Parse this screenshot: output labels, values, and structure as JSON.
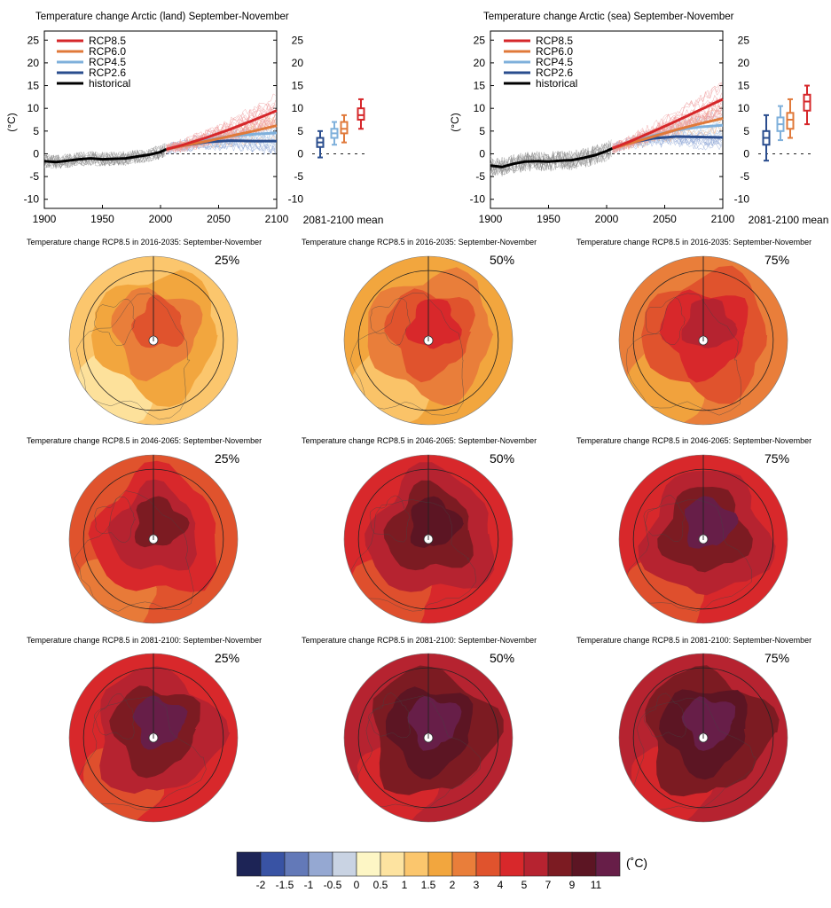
{
  "timeseries_panels": [
    {
      "title": "Temperature change Arctic (land) September-November",
      "ylabel": "(°C)",
      "mean_label": "2081-2100 mean",
      "legend": [
        "RCP8.5",
        "RCP6.0",
        "RCP4.5",
        "RCP2.6",
        "historical"
      ]
    },
    {
      "title": "Temperature change Arctic (sea) September-November",
      "ylabel": "(°C)",
      "mean_label": "2081-2100 mean",
      "legend": [
        "RCP8.5",
        "RCP6.0",
        "RCP4.5",
        "RCP2.6",
        "historical"
      ]
    }
  ],
  "map_rows": [
    {
      "title": "Temperature change RCP8.5 in 2016-2035: September-November"
    },
    {
      "title": "Temperature change RCP8.5 in 2046-2065: September-November"
    },
    {
      "title": "Temperature change RCP8.5 in 2081-2100: September-November"
    }
  ],
  "percentiles": [
    "25%",
    "50%",
    "75%"
  ],
  "colorbar": {
    "unit": "(˚C)",
    "tick_labels": [
      "-2",
      "-1.5",
      "-1",
      "-0.5",
      "0",
      "0.5",
      "1",
      "1.5",
      "2",
      "3",
      "4",
      "5",
      "7",
      "9",
      "11"
    ],
    "colors": [
      "#1d2456",
      "#3953a4",
      "#6379b8",
      "#95a8d2",
      "#c9d3e3",
      "#fdf6c5",
      "#fde3a0",
      "#fbc66d",
      "#f2a63e",
      "#e97e3a",
      "#e0532d",
      "#d8282b",
      "#b62330",
      "#7c1b22",
      "#5c1523",
      "#671e48"
    ]
  },
  "chart_data": [
    {
      "type": "line",
      "title": "Temperature change Arctic (land) September-November",
      "xlabel": "",
      "ylabel": "(°C)",
      "xlim": [
        1900,
        2100
      ],
      "ylim": [
        -12,
        27
      ],
      "x_ticks": [
        1900,
        1950,
        2000,
        2050,
        2100
      ],
      "y_ticks": [
        -10,
        -5,
        0,
        5,
        10,
        15,
        20,
        25
      ],
      "legend_position": "top-left",
      "series": [
        {
          "name": "historical",
          "color": "#000000",
          "x": [
            1900,
            1910,
            1920,
            1930,
            1940,
            1950,
            1960,
            1970,
            1980,
            1990,
            2000,
            2005
          ],
          "y": [
            -1.6,
            -1.8,
            -1.5,
            -1.2,
            -1.0,
            -1.2,
            -1.1,
            -1.0,
            -0.6,
            -0.2,
            0.4,
            1.0
          ]
        },
        {
          "name": "RCP2.6",
          "color": "#2a4d8e",
          "x": [
            2005,
            2020,
            2040,
            2060,
            2080,
            2100
          ],
          "y": [
            1.0,
            1.8,
            2.6,
            2.9,
            2.8,
            2.8
          ]
        },
        {
          "name": "RCP4.5",
          "color": "#7fb0db",
          "x": [
            2005,
            2020,
            2040,
            2060,
            2080,
            2100
          ],
          "y": [
            1.0,
            1.9,
            3.0,
            3.9,
            4.3,
            4.6
          ]
        },
        {
          "name": "RCP6.0",
          "color": "#e0793a",
          "x": [
            2005,
            2020,
            2040,
            2060,
            2080,
            2100
          ],
          "y": [
            1.0,
            1.8,
            2.8,
            3.9,
            5.0,
            6.2
          ]
        },
        {
          "name": "RCP8.5",
          "color": "#d6272a",
          "x": [
            2005,
            2020,
            2040,
            2060,
            2080,
            2100
          ],
          "y": [
            1.0,
            2.0,
            3.6,
            5.4,
            7.4,
            9.5
          ]
        }
      ],
      "box_2081_2100_mean": [
        {
          "name": "RCP2.6",
          "min": -0.8,
          "q1": 1.5,
          "median": 2.5,
          "q3": 3.5,
          "max": 5.0
        },
        {
          "name": "RCP4.5",
          "min": 2.0,
          "q1": 3.5,
          "median": 4.5,
          "q3": 5.5,
          "max": 7.0
        },
        {
          "name": "RCP6.0",
          "min": 2.5,
          "q1": 4.5,
          "median": 5.5,
          "q3": 7.0,
          "max": 8.5
        },
        {
          "name": "RCP8.5",
          "min": 5.5,
          "q1": 7.5,
          "median": 8.5,
          "q3": 10.0,
          "max": 12.0
        }
      ]
    },
    {
      "type": "line",
      "title": "Temperature change Arctic (sea) September-November",
      "xlabel": "",
      "ylabel": "(°C)",
      "xlim": [
        1900,
        2100
      ],
      "ylim": [
        -12,
        27
      ],
      "x_ticks": [
        1900,
        1950,
        2000,
        2050,
        2100
      ],
      "y_ticks": [
        -10,
        -5,
        0,
        5,
        10,
        15,
        20,
        25
      ],
      "legend_position": "top-left",
      "series": [
        {
          "name": "historical",
          "color": "#000000",
          "x": [
            1900,
            1910,
            1920,
            1930,
            1940,
            1950,
            1960,
            1970,
            1980,
            1990,
            2000,
            2005
          ],
          "y": [
            -2.6,
            -2.9,
            -2.2,
            -1.7,
            -1.6,
            -1.7,
            -1.5,
            -1.4,
            -0.9,
            -0.3,
            0.6,
            1.2
          ]
        },
        {
          "name": "RCP2.6",
          "color": "#2a4d8e",
          "x": [
            2005,
            2020,
            2040,
            2060,
            2080,
            2100
          ],
          "y": [
            1.2,
            2.4,
            3.4,
            3.8,
            3.7,
            3.6
          ]
        },
        {
          "name": "RCP4.5",
          "color": "#7fb0db",
          "x": [
            2005,
            2020,
            2040,
            2060,
            2080,
            2100
          ],
          "y": [
            1.2,
            2.5,
            4.0,
            5.2,
            5.9,
            6.3
          ]
        },
        {
          "name": "RCP6.0",
          "color": "#e0793a",
          "x": [
            2005,
            2020,
            2040,
            2060,
            2080,
            2100
          ],
          "y": [
            1.2,
            2.3,
            3.8,
            5.3,
            6.6,
            7.8
          ]
        },
        {
          "name": "RCP8.5",
          "color": "#d6272a",
          "x": [
            2005,
            2020,
            2040,
            2060,
            2080,
            2100
          ],
          "y": [
            1.2,
            2.7,
            4.9,
            7.2,
            9.6,
            12.0
          ]
        }
      ],
      "box_2081_2100_mean": [
        {
          "name": "RCP2.6",
          "min": -1.5,
          "q1": 2.0,
          "median": 3.5,
          "q3": 5.0,
          "max": 8.5
        },
        {
          "name": "RCP4.5",
          "min": 3.0,
          "q1": 5.0,
          "median": 6.5,
          "q3": 8.0,
          "max": 10.5
        },
        {
          "name": "RCP6.0",
          "min": 3.5,
          "q1": 5.5,
          "median": 7.5,
          "q3": 9.0,
          "max": 12.0
        },
        {
          "name": "RCP8.5",
          "min": 6.5,
          "q1": 9.5,
          "median": 11.5,
          "q3": 13.0,
          "max": 15.0
        }
      ]
    },
    {
      "type": "heatmap",
      "description_visible": "polar maps, 3 periods × 3 percentiles",
      "periods": [
        "2016-2035",
        "2046-2065",
        "2081-2100"
      ],
      "percentiles": [
        "25%",
        "50%",
        "75%"
      ],
      "central_value_class": [
        [
          "4",
          "5",
          "7"
        ],
        [
          "9",
          "9",
          "11"
        ],
        [
          "11",
          "11",
          "11"
        ]
      ]
    }
  ]
}
